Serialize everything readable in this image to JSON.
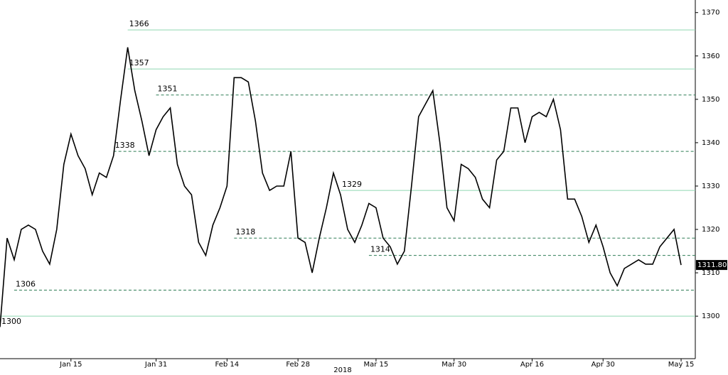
{
  "chart_data": {
    "type": "line",
    "x_group_label": "2018",
    "x": [
      "2018-01-01",
      "2018-01-02",
      "2018-01-03",
      "2018-01-04",
      "2018-01-05",
      "2018-01-08",
      "2018-01-09",
      "2018-01-10",
      "2018-01-11",
      "2018-01-12",
      "2018-01-15",
      "2018-01-16",
      "2018-01-17",
      "2018-01-18",
      "2018-01-19",
      "2018-01-22",
      "2018-01-23",
      "2018-01-24",
      "2018-01-25",
      "2018-01-26",
      "2018-01-29",
      "2018-01-30",
      "2018-01-31",
      "2018-02-01",
      "2018-02-02",
      "2018-02-05",
      "2018-02-06",
      "2018-02-07",
      "2018-02-08",
      "2018-02-09",
      "2018-02-12",
      "2018-02-13",
      "2018-02-14",
      "2018-02-15",
      "2018-02-16",
      "2018-02-19",
      "2018-02-20",
      "2018-02-21",
      "2018-02-22",
      "2018-02-23",
      "2018-02-26",
      "2018-02-27",
      "2018-02-28",
      "2018-03-01",
      "2018-03-02",
      "2018-03-05",
      "2018-03-06",
      "2018-03-07",
      "2018-03-08",
      "2018-03-09",
      "2018-03-12",
      "2018-03-13",
      "2018-03-14",
      "2018-03-15",
      "2018-03-16",
      "2018-03-19",
      "2018-03-20",
      "2018-03-21",
      "2018-03-22",
      "2018-03-23",
      "2018-03-26",
      "2018-03-27",
      "2018-03-28",
      "2018-03-29",
      "2018-03-30",
      "2018-04-02",
      "2018-04-03",
      "2018-04-04",
      "2018-04-05",
      "2018-04-06",
      "2018-04-09",
      "2018-04-10",
      "2018-04-11",
      "2018-04-12",
      "2018-04-13",
      "2018-04-16",
      "2018-04-17",
      "2018-04-18",
      "2018-04-19",
      "2018-04-20",
      "2018-04-23",
      "2018-04-24",
      "2018-04-25",
      "2018-04-26",
      "2018-04-27",
      "2018-04-30",
      "2018-05-01",
      "2018-05-02",
      "2018-05-03",
      "2018-05-04",
      "2018-05-07",
      "2018-05-08",
      "2018-05-09",
      "2018-05-10",
      "2018-05-11",
      "2018-05-14",
      "2018-05-15"
    ],
    "values": [
      1297.5,
      1318,
      1313,
      1320,
      1321,
      1320,
      1315,
      1312,
      1320,
      1335,
      1342,
      1337,
      1334,
      1328,
      1333,
      1332,
      1337,
      1350,
      1362,
      1352,
      1345,
      1337,
      1343,
      1346,
      1348,
      1335,
      1330,
      1328,
      1317,
      1314,
      1321,
      1325,
      1330,
      1355,
      1355,
      1354,
      1345,
      1333,
      1329,
      1330,
      1330,
      1338,
      1318,
      1317,
      1310,
      1318,
      1325,
      1333,
      1328,
      1320,
      1317,
      1321,
      1326,
      1325,
      1318,
      1316,
      1312,
      1315,
      1330,
      1346,
      1349,
      1352,
      1340,
      1325,
      1322,
      1335,
      1334,
      1332,
      1327,
      1325,
      1336,
      1338,
      1348,
      1348,
      1340,
      1346,
      1347,
      1346,
      1350,
      1343,
      1327,
      1327,
      1323,
      1317,
      1321,
      1316,
      1310,
      1307,
      1311,
      1312,
      1313,
      1312,
      1312,
      1316,
      1318,
      1320,
      1311.8
    ],
    "color": "#000000",
    "last_price": {
      "value": 1311.8,
      "label": "1311.80"
    },
    "levels": [
      {
        "value": 1366,
        "style": "solid",
        "from": "2018-01-25"
      },
      {
        "value": 1357,
        "style": "solid",
        "from": "2018-01-25"
      },
      {
        "value": 1351,
        "style": "dashed",
        "from": "2018-01-31"
      },
      {
        "value": 1338,
        "style": "dashed",
        "from": "2018-01-23"
      },
      {
        "value": 1329,
        "style": "solid",
        "from": "2018-03-08"
      },
      {
        "value": 1318,
        "style": "dashed",
        "from": "2018-02-15"
      },
      {
        "value": 1314,
        "style": "dashed",
        "from": "2018-03-14"
      },
      {
        "value": 1306,
        "style": "dashed",
        "from": "2018-01-03"
      },
      {
        "value": 1300,
        "style": "solid",
        "from": "2018-01-01"
      }
    ],
    "level_colors": {
      "solid": "#8fd8b0",
      "dashed": "#2f7d55"
    },
    "xlim": [
      "2018-01-01",
      "2018-05-17"
    ],
    "xticks": [
      {
        "value": "2018-01-15",
        "label": "Jan 15"
      },
      {
        "value": "2018-01-31",
        "label": "Jan 31"
      },
      {
        "value": "2018-02-14",
        "label": "Feb 14"
      },
      {
        "value": "2018-02-28",
        "label": "Feb 28"
      },
      {
        "value": "2018-03-15",
        "label": "Mar 15"
      },
      {
        "value": "2018-03-30",
        "label": "Mar 30"
      },
      {
        "value": "2018-04-16",
        "label": "Apr 16"
      },
      {
        "value": "2018-04-30",
        "label": "Apr 30"
      },
      {
        "value": "2018-05-15",
        "label": "May 15"
      }
    ],
    "ylim": [
      1290.2,
      1372.9
    ],
    "yticks": [
      1300,
      1310,
      1320,
      1330,
      1340,
      1350,
      1360,
      1370
    ]
  }
}
